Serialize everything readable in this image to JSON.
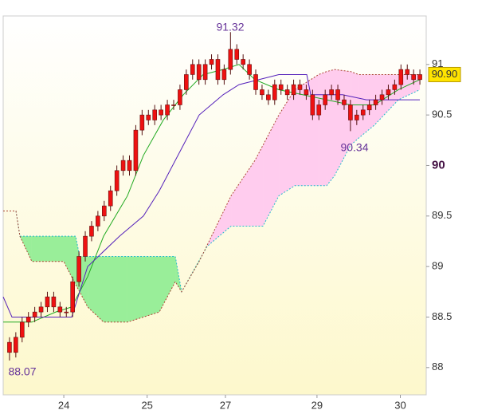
{
  "chart_data": {
    "type": "candlestick",
    "xlim": [
      0,
      67
    ],
    "ylim": [
      87.73,
      91.48
    ],
    "yticks": [
      88,
      {
        "value": 88.5,
        "label": "88.5"
      },
      89,
      {
        "value": 89.5,
        "label": "89.5"
      },
      90,
      {
        "value": 90.5,
        "label": "90.5"
      },
      91
    ],
    "bold_ytick": 90,
    "xticks": [
      {
        "value": 9.6,
        "label": "24"
      },
      {
        "value": 22.8,
        "label": "25"
      },
      {
        "value": 35.2,
        "label": "27"
      },
      {
        "value": 49.7,
        "label": "29"
      },
      {
        "value": 62.9,
        "label": "30"
      }
    ],
    "candle_color": "#ee1111",
    "x": [
      1,
      2,
      3,
      4,
      5,
      6,
      7,
      8,
      9,
      10,
      11,
      12,
      13,
      14,
      15,
      16,
      17,
      18,
      19,
      20,
      21,
      22,
      23,
      24,
      25,
      26,
      27,
      28,
      29,
      30,
      31,
      32,
      33,
      34,
      35,
      36,
      37,
      38,
      39,
      40,
      41,
      42,
      43,
      44,
      45,
      46,
      47,
      48,
      49,
      50,
      51,
      52,
      53,
      54,
      55,
      56,
      57,
      58,
      59,
      60,
      61,
      62,
      63,
      64,
      65,
      66
    ],
    "open": [
      88.25,
      88.15,
      88.3,
      88.45,
      88.5,
      88.55,
      88.6,
      88.7,
      88.6,
      88.55,
      88.55,
      88.85,
      89.1,
      89.3,
      89.4,
      89.5,
      89.6,
      89.75,
      89.95,
      90.05,
      89.95,
      90.35,
      90.5,
      90.45,
      90.55,
      90.5,
      90.6,
      90.6,
      90.75,
      90.9,
      91.0,
      90.85,
      91.0,
      91.05,
      90.85,
      90.95,
      91.15,
      91.05,
      91.0,
      90.9,
      90.75,
      90.7,
      90.65,
      90.8,
      90.75,
      90.7,
      90.8,
      90.75,
      90.7,
      90.5,
      90.6,
      90.7,
      90.75,
      90.65,
      90.6,
      90.45,
      90.5,
      90.55,
      90.6,
      90.65,
      90.7,
      90.75,
      90.8,
      90.95,
      90.9,
      90.85
    ],
    "high": [
      88.3,
      88.35,
      88.5,
      88.55,
      88.6,
      88.65,
      88.75,
      88.75,
      88.65,
      88.6,
      88.9,
      89.15,
      89.35,
      89.45,
      89.55,
      89.65,
      89.8,
      90.0,
      90.1,
      90.1,
      90.4,
      90.55,
      90.55,
      90.6,
      90.6,
      90.65,
      90.65,
      90.8,
      90.95,
      91.05,
      91.05,
      91.05,
      91.1,
      91.1,
      91.0,
      91.32,
      91.2,
      91.1,
      91.05,
      90.95,
      90.8,
      90.75,
      90.85,
      90.85,
      90.8,
      90.85,
      90.85,
      90.8,
      90.75,
      90.65,
      90.75,
      90.8,
      90.8,
      90.7,
      90.65,
      90.55,
      90.6,
      90.65,
      90.7,
      90.75,
      90.8,
      90.85,
      91.0,
      91.0,
      90.95,
      90.95
    ],
    "low": [
      88.07,
      88.1,
      88.25,
      88.4,
      88.45,
      88.5,
      88.55,
      88.55,
      88.5,
      88.5,
      88.5,
      88.8,
      89.05,
      89.25,
      89.35,
      89.45,
      89.55,
      89.7,
      89.9,
      89.9,
      89.9,
      90.3,
      90.4,
      90.4,
      90.45,
      90.45,
      90.55,
      90.55,
      90.7,
      90.85,
      90.8,
      90.8,
      90.95,
      90.8,
      90.8,
      90.9,
      91.0,
      90.95,
      90.85,
      90.7,
      90.65,
      90.6,
      90.6,
      90.7,
      90.65,
      90.65,
      90.7,
      90.65,
      90.45,
      90.45,
      90.55,
      90.65,
      90.6,
      90.55,
      90.34,
      90.4,
      90.45,
      90.5,
      90.55,
      90.6,
      90.65,
      90.7,
      90.75,
      90.85,
      90.8,
      90.8
    ],
    "close": [
      88.15,
      88.3,
      88.45,
      88.5,
      88.55,
      88.6,
      88.7,
      88.6,
      88.55,
      88.55,
      88.85,
      89.1,
      89.3,
      89.4,
      89.5,
      89.6,
      89.75,
      89.95,
      90.05,
      89.95,
      90.35,
      90.5,
      90.45,
      90.55,
      90.5,
      90.6,
      90.6,
      90.75,
      90.9,
      91.0,
      90.85,
      91.0,
      91.05,
      90.85,
      90.95,
      91.15,
      91.05,
      91.0,
      90.9,
      90.75,
      90.7,
      90.65,
      90.8,
      90.75,
      90.7,
      90.8,
      90.75,
      90.7,
      90.5,
      90.6,
      90.7,
      90.75,
      90.65,
      90.6,
      90.45,
      90.5,
      90.55,
      90.6,
      90.65,
      90.7,
      90.75,
      90.8,
      90.95,
      90.9,
      90.85,
      90.9
    ],
    "lines": [
      {
        "color": "#22aa22",
        "x": [
          0,
          4.54,
          8.33,
          10.85,
          13.38,
          15.9,
          19.68,
          22.21,
          25.36,
          28.52,
          31.67,
          34.83,
          37.35,
          39.87,
          43.66,
          47.44,
          51.23,
          55.02,
          58.8,
          62.59,
          65.99
        ],
        "values": [
          88.45,
          88.45,
          88.55,
          88.6,
          88.9,
          89.3,
          89.7,
          90.1,
          90.45,
          90.7,
          90.9,
          90.95,
          91.0,
          90.85,
          90.75,
          90.7,
          90.65,
          90.6,
          90.6,
          90.75,
          90.85
        ]
      },
      {
        "color": "#5522bb",
        "x": [
          0,
          1.39,
          10.85,
          13.38,
          18.42,
          22.21,
          24.73,
          28.52,
          31.04,
          34.83,
          37.35,
          43.66,
          48.08,
          48.71,
          53.75,
          57.54,
          62.59,
          65.99
        ],
        "values": [
          88.7,
          88.5,
          88.5,
          89.0,
          89.3,
          89.5,
          89.75,
          90.2,
          90.5,
          90.7,
          90.8,
          90.9,
          90.9,
          90.7,
          90.7,
          90.65,
          90.65,
          90.65
        ]
      }
    ],
    "cloud": {
      "x": [
        0,
        2.02,
        2.65,
        4.54,
        9.59,
        11.48,
        12.11,
        13.38,
        15.9,
        19.68,
        24.73,
        27.26,
        28.26,
        31.04,
        32.3,
        36.09,
        39.87,
        41.14,
        43.66,
        46.18,
        49.97,
        51.23,
        52.49,
        55.02,
        56.28,
        58.8,
        62.59,
        65.99
      ],
      "span_a": [
        89.55,
        89.55,
        89.3,
        89.3,
        89.3,
        89.3,
        89.1,
        89.1,
        89.1,
        89.1,
        89.1,
        89.1,
        88.75,
        89.06,
        89.2,
        89.4,
        89.4,
        89.4,
        89.7,
        89.8,
        89.8,
        89.8,
        89.9,
        90.2,
        90.27,
        90.4,
        90.65,
        90.75
      ],
      "span_b": [
        89.55,
        89.55,
        89.3,
        89.05,
        89.05,
        88.82,
        88.75,
        88.6,
        88.45,
        88.45,
        88.55,
        88.85,
        88.75,
        89.05,
        89.21,
        89.7,
        90.05,
        90.2,
        90.5,
        90.75,
        90.9,
        90.93,
        90.95,
        90.93,
        90.9,
        90.9,
        90.9,
        90.9
      ],
      "span_a_color": "#22bbcc",
      "span_b_color": "#aa4433",
      "bull_color": "#99ee99",
      "bear_color": "#ffccee"
    },
    "annotations": [
      "91.32",
      "88.07",
      "90.34"
    ],
    "last_label": "90.90",
    "last_label_color": "#ffe400"
  }
}
